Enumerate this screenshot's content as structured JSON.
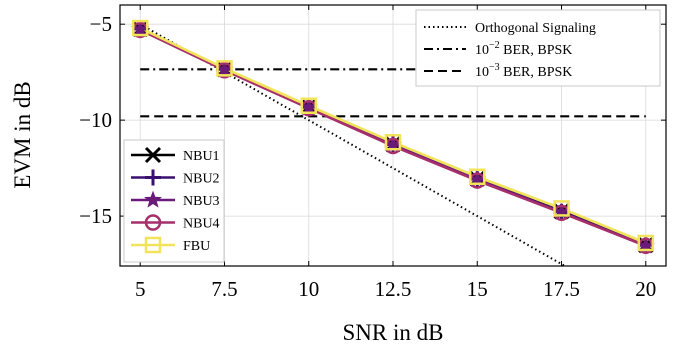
{
  "chart_data": {
    "type": "line",
    "title": "",
    "xlabel": "SNR in dB",
    "ylabel": "EVM in dB",
    "xlim": [
      4.4,
      20.6
    ],
    "ylim": [
      -17.6,
      -4.0
    ],
    "xticks": [
      5,
      7.5,
      10,
      12.5,
      15,
      17.5,
      20
    ],
    "xtick_labels": [
      "5",
      "7.5",
      "10",
      "12.5",
      "15",
      "17.5",
      "20"
    ],
    "yticks": [
      -5,
      -10,
      -15
    ],
    "ytick_labels": [
      "−5",
      "−10",
      "−15"
    ],
    "grid": true,
    "x": [
      5,
      7.5,
      10,
      12.5,
      15,
      17.5,
      20
    ],
    "series": [
      {
        "name": "NBU1",
        "color": "#000000",
        "marker": "x",
        "values": [
          -5.25,
          -7.35,
          -9.3,
          -11.25,
          -13.05,
          -14.75,
          -16.5
        ]
      },
      {
        "name": "NBU2",
        "color": "#3b0f70",
        "marker": "plus",
        "values": [
          -5.25,
          -7.35,
          -9.32,
          -11.27,
          -13.07,
          -14.77,
          -16.52
        ]
      },
      {
        "name": "NBU3",
        "color": "#6a1b7a",
        "marker": "star",
        "values": [
          -5.27,
          -7.37,
          -9.34,
          -11.3,
          -13.1,
          -14.8,
          -16.55
        ]
      },
      {
        "name": "NBU4",
        "color": "#a62f6c",
        "marker": "circle",
        "values": [
          -5.3,
          -7.4,
          -9.38,
          -11.35,
          -13.15,
          -14.83,
          -16.55
        ]
      },
      {
        "name": "FBU",
        "color": "#f2e45a",
        "marker": "square",
        "values": [
          -5.2,
          -7.3,
          -9.25,
          -11.15,
          -12.95,
          -14.6,
          -16.4
        ]
      }
    ],
    "reference_lines": [
      {
        "name": "Orthogonal Signaling",
        "style": "dotted",
        "kind": "line",
        "x": [
          5,
          17.6
        ],
        "y": [
          -5.0,
          -17.6
        ]
      },
      {
        "name_main": "10",
        "name_sup": "−2",
        "name_rest": " BER, BPSK",
        "style": "dashdot",
        "kind": "hline",
        "y": -7.35
      },
      {
        "name_main": "10",
        "name_sup": "−3",
        "name_rest": " BER, BPSK",
        "style": "dashed",
        "kind": "hline",
        "y": -9.8
      }
    ],
    "legends": {
      "series_placement": "bottom-left",
      "reference_placement": "top-right"
    }
  }
}
